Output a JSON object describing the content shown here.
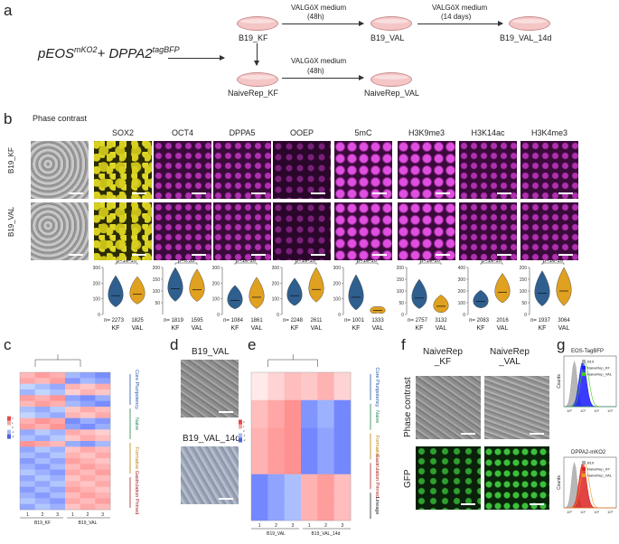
{
  "panel_labels": [
    "a",
    "b",
    "c",
    "d",
    "e",
    "f",
    "g"
  ],
  "panel_a": {
    "construct_main": "pEOS",
    "construct_sup1": "mKO2",
    "construct_plus": "+ DPPA2",
    "construct_sup2": "tagBFP",
    "dish_labels": [
      "B19_KF",
      "B19_VAL",
      "B19_VAL_14d",
      "NaiveRep_KF",
      "NaiveRep_VAL"
    ],
    "arrow1_line1": "VALGöX medium",
    "arrow1_line2": "(48h)",
    "arrow2_line1": "VALGöX medium",
    "arrow2_line2": "(14 days)",
    "arrow3_line1": "VALGöX medium",
    "arrow3_line2": "(48h)"
  },
  "panel_b": {
    "columns": [
      "Phase contrast",
      "SOX2",
      "OCT4",
      "DPPA5",
      "OOEP",
      "5mC",
      "H3K9me3",
      "H3K14ac",
      "H3K4me3"
    ],
    "rows": [
      "B19_KF",
      "B19_VAL"
    ],
    "colors": {
      "kf": "#2f5f8f",
      "val": "#e0a020"
    },
    "violins": [
      {
        "p": "p<1e-10",
        "ylim": [
          0,
          300
        ],
        "ticks": [
          "0",
          "100",
          "200",
          "300"
        ],
        "n_kf": "n= 2273",
        "n_val": "1825",
        "kf": [
          120,
          80
        ],
        "val": [
          130,
          70
        ]
      },
      {
        "p": "p=0.35",
        "ylim": [
          0,
          200
        ],
        "ticks": [
          "50",
          "100",
          "150",
          "200"
        ],
        "n_kf": "n= 1819",
        "n_val": "1595",
        "kf": [
          110,
          60
        ],
        "val": [
          105,
          55
        ]
      },
      {
        "p": "p<1e-10",
        "ylim": [
          0,
          300
        ],
        "ticks": [
          "0",
          "100",
          "200",
          "300"
        ],
        "n_kf": "n= 1084",
        "n_val": "1861",
        "kf": [
          90,
          60
        ],
        "val": [
          110,
          80
        ]
      },
      {
        "p": "p<1e-10",
        "ylim": [
          0,
          300
        ],
        "ticks": [
          "0",
          "100",
          "200",
          "300"
        ],
        "n_kf": "n= 2248",
        "n_val": "2611",
        "kf": [
          120,
          70
        ],
        "val": [
          160,
          90
        ]
      },
      {
        "p": "p<1e-10",
        "ylim": [
          0,
          300
        ],
        "ticks": [
          "0",
          "100",
          "200",
          "300"
        ],
        "n_kf": "n= 1001",
        "n_val": "1333",
        "kf": [
          110,
          90
        ],
        "val": [
          25,
          15
        ]
      },
      {
        "p": "p<1e-10",
        "ylim": [
          0,
          200
        ],
        "ticks": [
          "0",
          "50",
          "100",
          "150",
          "200"
        ],
        "n_kf": "n= 2757",
        "n_val": "3132",
        "kf": [
          70,
          50
        ],
        "val": [
          35,
          30
        ]
      },
      {
        "p": "p<1e-10",
        "ylim": [
          0,
          400
        ],
        "ticks": [
          "0",
          "100",
          "200",
          "300",
          "400"
        ],
        "n_kf": "n= 2083",
        "n_val": "2016",
        "kf": [
          110,
          60
        ],
        "val": [
          190,
          100
        ]
      },
      {
        "p": "p<1e-10",
        "ylim": [
          0,
          200
        ],
        "ticks": [
          "0",
          "50",
          "100",
          "150",
          "200"
        ],
        "n_kf": "n= 1937",
        "n_val": "3064",
        "kf": [
          90,
          60
        ],
        "val": [
          100,
          70
        ]
      }
    ],
    "xlabels": [
      "KF",
      "VAL"
    ]
  },
  "panel_c": {
    "group_labels": [
      "B19_KF",
      "B19_VAL"
    ],
    "column_numbers": [
      "1",
      "2",
      "3",
      "1",
      "2",
      "3"
    ],
    "categories": [
      {
        "name": "Core Pluripotency",
        "color": "#2255aa"
      },
      {
        "name": "Naive",
        "color": "#22884a"
      },
      {
        "name": "Formative",
        "color": "#b8860b"
      },
      {
        "name": "Gastrulation Primed",
        "color": "#aa2222"
      }
    ],
    "legend_ticks": [
      "2",
      "1",
      "0",
      "-1",
      "-2"
    ]
  },
  "panel_d": {
    "labels": [
      "B19_VAL",
      "B19_VAL_14d"
    ]
  },
  "panel_e": {
    "group_labels": [
      "B19_VAL",
      "B19_VAL_14d"
    ],
    "column_numbers": [
      "1",
      "2",
      "3",
      "1",
      "2",
      "3"
    ],
    "categories": [
      {
        "name": "Core Pluripotency",
        "color": "#2255aa"
      },
      {
        "name": "Naive",
        "color": "#22884a"
      },
      {
        "name": "Formative",
        "color": "#b8860b"
      },
      {
        "name": "Gastrulation Primed",
        "color": "#aa2222"
      },
      {
        "name": "Lineage",
        "color": "#222222"
      }
    ],
    "legend_ticks": [
      "2",
      "1",
      "0",
      "-1",
      "-2"
    ]
  },
  "panel_f": {
    "col1": "NaiveRep",
    "col1b": "_KF",
    "col2": "NaiveRep",
    "col2b": "_VAL",
    "row1": "Phase contrast",
    "row2": "GFP"
  },
  "panel_g": {
    "plot1_title": "EOS-TagBFP",
    "plot2_title": "DPPA2-mKO2",
    "ylabel": "Counts",
    "xticks": [
      "10⁰",
      "10¹",
      "10²",
      "10³"
    ],
    "legend1": [
      "B19",
      "NaiveRep_KF",
      "NaiveRep_VAL"
    ],
    "legend2": [
      "B19",
      "NaiveRep_KF",
      "NaiveRep_VAL"
    ],
    "colors1": {
      "b19": "#aaaaaa",
      "kf": "#1a1aff",
      "val": "#44cc22"
    },
    "colors2": {
      "b19": "#aaaaaa",
      "kf": "#dd2222",
      "val": "#f09a20"
    }
  }
}
